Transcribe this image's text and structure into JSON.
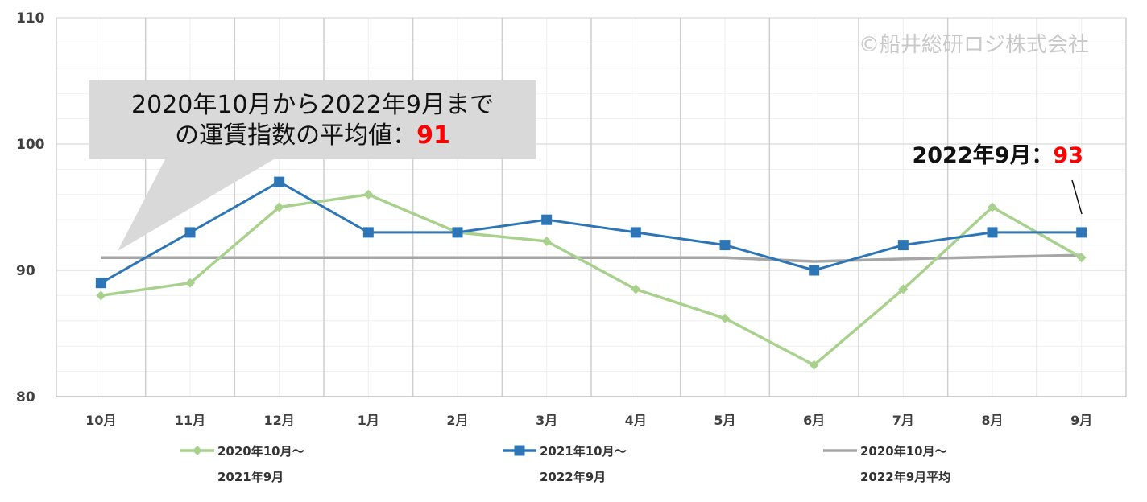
{
  "chart_data": {
    "type": "line",
    "categories": [
      "10月",
      "11月",
      "12月",
      "1月",
      "2月",
      "3月",
      "4月",
      "5月",
      "6月",
      "7月",
      "8月",
      "9月"
    ],
    "yticks": [
      80,
      90,
      100,
      110
    ],
    "ylim": [
      80,
      110
    ],
    "grid": true,
    "legend_position": "bottom",
    "series": [
      {
        "name": "2020年10月～\n2021年9月",
        "color": "#a9d18e",
        "marker": "diamond",
        "values": [
          88,
          89,
          95,
          96,
          93,
          92.3,
          88.5,
          86.2,
          82.5,
          88.5,
          95,
          91
        ]
      },
      {
        "name": "2021年10月～\n2022年9月",
        "color": "#2e75b6",
        "marker": "square",
        "values": [
          89,
          93,
          97,
          93,
          93,
          94,
          93,
          92,
          90,
          92,
          93,
          93
        ]
      },
      {
        "name": "2020年10月～\n2022年9月平均",
        "color": "#a6a6a6",
        "marker": "none",
        "values": [
          91,
          91,
          91,
          91,
          91,
          91,
          91,
          91,
          90.7,
          90.9,
          91.05,
          91.2
        ]
      }
    ],
    "annotations": {
      "watermark": "©船井総研ロジ株式会社",
      "callout_line1": "2020年10月から2022年9月まで",
      "callout_line2": "の運賃指数の平均値：",
      "callout_value": "91",
      "last_label_prefix": "2022年9月：",
      "last_label_value": "93"
    }
  }
}
